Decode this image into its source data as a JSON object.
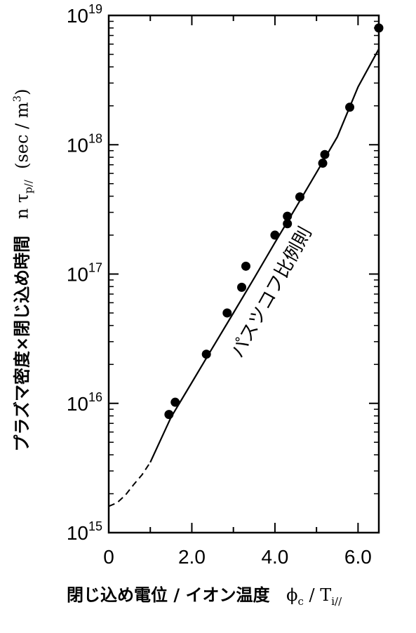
{
  "chart_data": {
    "type": "scatter",
    "xlabel": "閉じ込め電位 / イオン温度",
    "ylabel": "プラズマ密度×閉じ込め時間",
    "annotation": "パスツコフ比例則",
    "xlim": [
      0,
      6.5
    ],
    "ylim": [
      1000000000000000.0,
      1e+19
    ],
    "y_scale": "log",
    "x_ticks": [
      "0",
      "2.0",
      "4.0",
      "6.0"
    ],
    "x_tick_values": [
      0,
      2,
      4,
      6
    ],
    "y_ticks": [
      {
        "base": "10",
        "exp": "15",
        "value": 1000000000000000.0
      },
      {
        "base": "10",
        "exp": "16",
        "value": 1e+16
      },
      {
        "base": "10",
        "exp": "17",
        "value": 1e+17
      },
      {
        "base": "10",
        "exp": "18",
        "value": 1e+18
      },
      {
        "base": "10",
        "exp": "19",
        "value": 1e+19
      }
    ],
    "series": [
      {
        "x": [
          1.45,
          1.6,
          2.35,
          2.85,
          3.2,
          3.3,
          4.0,
          4.3,
          4.3,
          4.6,
          5.15,
          5.2,
          5.8,
          6.5
        ],
        "y": [
          8200000000000000.0,
          1.02e+16,
          2.4e+16,
          5e+16,
          7.9e+16,
          1.15e+17,
          2e+17,
          2.45e+17,
          2.8e+17,
          3.95e+17,
          7.2e+17,
          8.4e+17,
          1.95e+18,
          8e+18
        ]
      }
    ],
    "fit_curve": {
      "style": "solid",
      "x": [
        1.0,
        1.5,
        2.0,
        2.5,
        3.0,
        3.5,
        4.0,
        4.5,
        5.0,
        5.5,
        6.0,
        6.5
      ],
      "y": [
        3500000000000000.0,
        7800000000000000.0,
        1.45e+16,
        2.7e+16,
        5e+16,
        9.3e+16,
        1.75e+17,
        3.25e+17,
        6.1e+17,
        1.15e+18,
        2.8e+18,
        5.5e+18
      ]
    },
    "extrapolation": {
      "style": "dashed",
      "x": [
        0.0,
        0.2,
        0.4,
        0.6,
        0.8,
        1.0
      ],
      "y": [
        1600000000000000.0,
        1700000000000000.0,
        1950000000000000.0,
        2350000000000000.0,
        2800000000000000.0,
        3500000000000000.0
      ]
    }
  }
}
